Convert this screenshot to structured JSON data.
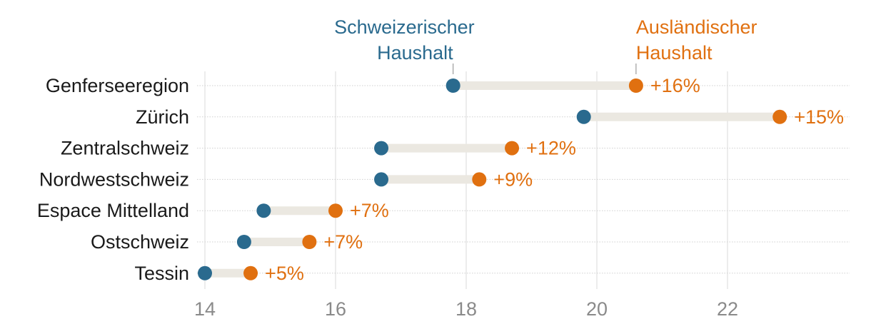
{
  "chart_data": {
    "type": "dumbbell",
    "title": "",
    "xlabel": "",
    "ylabel": "",
    "xlim": [
      14,
      23.9
    ],
    "x_ticks": [
      14,
      16,
      18,
      20,
      22
    ],
    "x_tick_labels": [
      "14",
      "16",
      "18",
      "20",
      "22"
    ],
    "grid": true,
    "colors": {
      "swiss": "#2a6a8e",
      "foreign": "#e07010",
      "connector": "#ebe8e1",
      "gridline": "#d9d9d9",
      "rowline": "#cfcfcf"
    },
    "series": [
      {
        "key": "swiss",
        "name_line1": "Schweizerischer",
        "name_line2": "Haushalt"
      },
      {
        "key": "foreign",
        "name_line1": "Ausländischer",
        "name_line2": "Haushalt"
      }
    ],
    "categories": [
      "Genferseeregion",
      "Zürich",
      "Zentralschweiz",
      "Nordwestschweiz",
      "Espace Mittelland",
      "Ostschweiz",
      "Tessin"
    ],
    "rows": [
      {
        "region": "Genferseeregion",
        "swiss": 17.8,
        "foreign": 20.6,
        "diff_label": "+16%"
      },
      {
        "region": "Zürich",
        "swiss": 19.8,
        "foreign": 22.8,
        "diff_label": "+15%"
      },
      {
        "region": "Zentralschweiz",
        "swiss": 16.7,
        "foreign": 18.7,
        "diff_label": "+12%"
      },
      {
        "region": "Nordwestschweiz",
        "swiss": 16.7,
        "foreign": 18.2,
        "diff_label": "+9%"
      },
      {
        "region": "Espace Mittelland",
        "swiss": 14.9,
        "foreign": 16.0,
        "diff_label": "+7%"
      },
      {
        "region": "Ostschweiz",
        "swiss": 14.6,
        "foreign": 15.6,
        "diff_label": "+7%"
      },
      {
        "region": "Tessin",
        "swiss": 14.0,
        "foreign": 14.7,
        "diff_label": "+5%"
      }
    ]
  }
}
